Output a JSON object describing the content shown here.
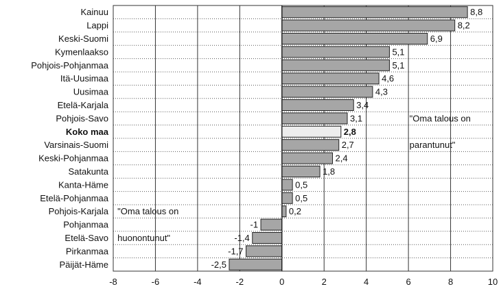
{
  "chart_data": {
    "type": "bar",
    "orientation": "horizontal",
    "categories": [
      "Kainuu",
      "Lappi",
      "Keski-Suomi",
      "Kymenlaakso",
      "Pohjois-Pohjanmaa",
      "Itä-Uusimaa",
      "Uusimaa",
      "Etelä-Karjala",
      "Pohjois-Savo",
      "Koko maa",
      "Varsinais-Suomi",
      "Keski-Pohjanmaa",
      "Satakunta",
      "Kanta-Häme",
      "Etelä-Pohjanmaa",
      "Pohjois-Karjala",
      "Pohjanmaa",
      "Etelä-Savo",
      "Pirkanmaa",
      "Päijät-Häme"
    ],
    "values": [
      8.8,
      8.2,
      6.9,
      5.1,
      5.1,
      4.6,
      4.3,
      3.4,
      3.1,
      2.8,
      2.7,
      2.4,
      1.8,
      0.5,
      0.5,
      0.2,
      -1,
      -1.4,
      -1.7,
      -2.5
    ],
    "value_labels": [
      "8,8",
      "8,2",
      "6,9",
      "5,1",
      "5,1",
      "4,6",
      "4,3",
      "3,4",
      "3,1",
      "2,8",
      "2,7",
      "2,4",
      "1,8",
      "0,5",
      "0,5",
      "0,2",
      "-1",
      "-1,4",
      "-1,7",
      "-2,5"
    ],
    "highlight_category": "Koko maa",
    "xlim": [
      -8,
      10
    ],
    "xticks": [
      -8,
      -6,
      -4,
      -2,
      0,
      2,
      4,
      6,
      8,
      10
    ],
    "xtick_labels": [
      "-8",
      "-6",
      "-4",
      "-2",
      "0",
      "2",
      "4",
      "6",
      "8",
      "10"
    ],
    "title": "",
    "xlabel": "",
    "ylabel": "",
    "grid": {
      "vertical": "solid",
      "horizontal": "dotted"
    },
    "colors": {
      "bar": "#a6a6a6",
      "bar_highlight": "#ededed",
      "bar_stroke": "#222222",
      "grid": "#333333"
    },
    "annotations": [
      {
        "lines": [
          "\"Oma talous on",
          "parantunut\""
        ],
        "near": "upper-right"
      },
      {
        "lines": [
          "\"Oma talous on",
          "huonontunut\""
        ],
        "near": "lower-left"
      }
    ]
  }
}
